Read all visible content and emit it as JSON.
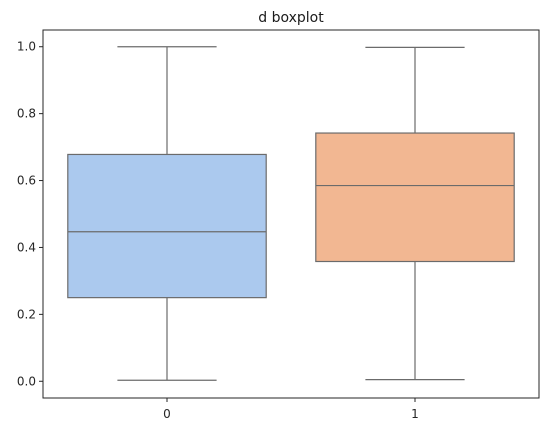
{
  "chart_data": {
    "type": "boxplot",
    "title": "d boxplot",
    "xlabel": "",
    "ylabel": "",
    "categories": [
      "0",
      "1"
    ],
    "ylim": [
      -0.05,
      1.05
    ],
    "yticks": [
      0.0,
      0.2,
      0.4,
      0.6,
      0.8,
      1.0
    ],
    "ytick_labels": [
      "0.0",
      "0.2",
      "0.4",
      "0.6",
      "0.8",
      "1.0"
    ],
    "grid": false,
    "boxes": [
      {
        "category": "0",
        "min": 0.003,
        "q1": 0.25,
        "median": 0.447,
        "q3": 0.678,
        "max": 1.0,
        "color": "#abc9ee"
      },
      {
        "category": "1",
        "min": 0.005,
        "q1": 0.358,
        "median": 0.585,
        "q3": 0.742,
        "max": 0.998,
        "color": "#f2b792"
      }
    ],
    "line_color": "#6b6b6b"
  }
}
